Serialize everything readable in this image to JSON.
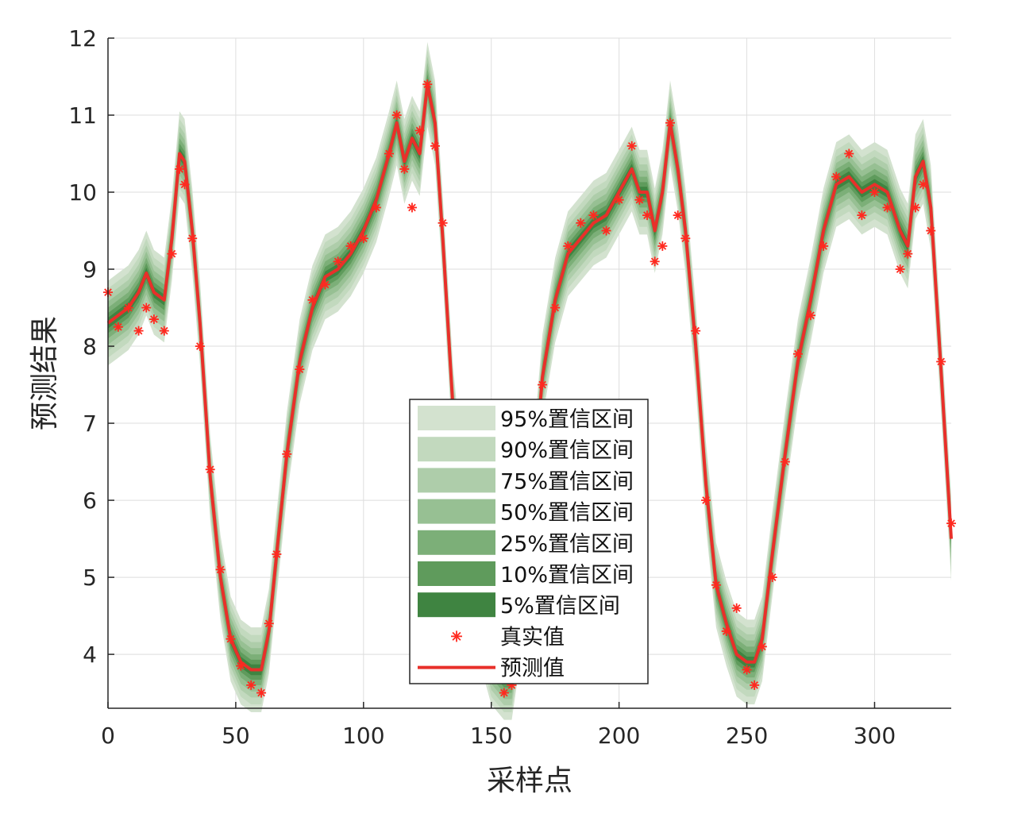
{
  "chart_data": {
    "type": "line",
    "xlabel": "采样点",
    "ylabel": "预测结果",
    "xlim": [
      0,
      330
    ],
    "ylim": [
      3.3,
      12
    ],
    "xticks": [
      0,
      50,
      100,
      150,
      200,
      250,
      300
    ],
    "yticks": [
      4,
      5,
      6,
      7,
      8,
      9,
      10,
      11,
      12
    ],
    "grid": true,
    "legend_position": "bottom-center",
    "legend": [
      "95%置信区间",
      "90%置信区间",
      "75%置信区间",
      "50%置信区间",
      "25%置信区间",
      "10%置信区间",
      "5%置信区间",
      "真实值",
      "预测值"
    ],
    "band_widths": [
      0.55,
      0.45,
      0.36,
      0.28,
      0.2,
      0.13,
      0.07
    ],
    "band_colors": [
      "#d3e2cf",
      "#c2d9be",
      "#aecdaa",
      "#97c093",
      "#7caf78",
      "#5f9b5c",
      "#3f8441"
    ],
    "colors": {
      "actual": "#ff2a20",
      "predicted": "#e8302a"
    },
    "x": [
      0,
      4,
      8,
      12,
      15,
      18,
      22,
      25,
      28,
      30,
      33,
      36,
      40,
      44,
      48,
      52,
      56,
      60,
      63,
      66,
      70,
      75,
      80,
      85,
      90,
      95,
      100,
      105,
      110,
      113,
      116,
      119,
      122,
      125,
      128,
      131,
      135,
      140,
      145,
      150,
      155,
      158,
      162,
      166,
      170,
      175,
      180,
      185,
      190,
      195,
      200,
      205,
      208,
      211,
      214,
      217,
      220,
      223,
      226,
      230,
      234,
      238,
      242,
      246,
      250,
      253,
      256,
      260,
      265,
      270,
      275,
      280,
      285,
      290,
      295,
      300,
      305,
      310,
      313,
      316,
      319,
      322,
      326,
      330
    ],
    "predicted": [
      8.3,
      8.4,
      8.5,
      8.7,
      8.95,
      8.7,
      8.6,
      9.4,
      10.5,
      10.4,
      9.5,
      8.3,
      6.3,
      5.0,
      4.2,
      3.9,
      3.8,
      3.8,
      4.3,
      5.3,
      6.6,
      7.8,
      8.5,
      8.9,
      9.0,
      9.2,
      9.5,
      9.9,
      10.5,
      10.9,
      10.4,
      10.7,
      10.5,
      11.4,
      10.9,
      9.4,
      7.2,
      5.5,
      4.5,
      3.9,
      3.7,
      3.7,
      4.6,
      6.0,
      7.6,
      8.6,
      9.2,
      9.4,
      9.6,
      9.7,
      10.0,
      10.3,
      10.0,
      10.0,
      9.5,
      10.0,
      10.9,
      10.3,
      9.5,
      8.0,
      6.2,
      4.9,
      4.4,
      4.0,
      3.9,
      3.9,
      4.2,
      5.3,
      6.6,
      7.8,
      8.6,
      9.5,
      10.1,
      10.2,
      10.0,
      10.1,
      10.0,
      9.5,
      9.3,
      10.2,
      10.4,
      9.8,
      7.7,
      5.5
    ],
    "actual": [
      8.7,
      8.25,
      8.5,
      8.2,
      8.5,
      8.35,
      8.2,
      9.2,
      10.3,
      10.1,
      9.4,
      8.0,
      6.4,
      5.1,
      4.2,
      3.85,
      3.6,
      3.5,
      4.4,
      5.3,
      6.6,
      7.7,
      8.6,
      8.8,
      9.1,
      9.3,
      9.4,
      9.8,
      10.5,
      11.0,
      10.3,
      9.8,
      10.8,
      11.4,
      10.6,
      9.6,
      7.2,
      5.6,
      4.5,
      3.8,
      3.5,
      3.6,
      4.5,
      6.1,
      7.5,
      8.5,
      9.3,
      9.6,
      9.7,
      9.5,
      9.9,
      10.6,
      9.9,
      9.7,
      9.1,
      9.3,
      10.9,
      9.7,
      9.4,
      8.2,
      6.0,
      4.9,
      4.3,
      4.6,
      3.8,
      3.6,
      4.1,
      5.0,
      6.5,
      7.9,
      8.4,
      9.3,
      10.2,
      10.5,
      9.7,
      10.0,
      9.8,
      9.0,
      9.2,
      9.8,
      10.1,
      9.5,
      7.8,
      5.7
    ]
  }
}
